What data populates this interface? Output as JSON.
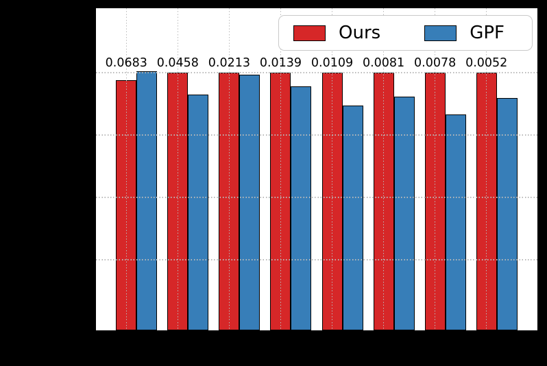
{
  "chart_data": {
    "type": "bar",
    "n_groups": 8,
    "series": [
      {
        "name": "Ours",
        "color": "#d62728",
        "edge_color": "#000000",
        "values": [
          0.776,
          0.8,
          0.8,
          0.8,
          0.8,
          0.8,
          0.8,
          0.8
        ]
      },
      {
        "name": "GPF",
        "color": "#377eb8",
        "edge_color": "#000000",
        "values": [
          0.804,
          0.731,
          0.793,
          0.757,
          0.695,
          0.724,
          0.667,
          0.718
        ]
      }
    ],
    "bar_labels": [
      "0.0683",
      "0.0458",
      "0.0213",
      "0.0139",
      "0.0109",
      "0.0081",
      "0.0078",
      "0.0052"
    ],
    "bar_width_data_units": 0.4,
    "axis": {
      "xlim": [
        -0.59,
        7.99
      ],
      "ylim": [
        -0.026,
        1.007
      ],
      "xticks": [
        0,
        1,
        2,
        3,
        4,
        5,
        6,
        7
      ],
      "yticks": [
        0.2,
        0.4,
        0.6,
        0.8
      ],
      "grid": true,
      "grid_style": "dotted",
      "grid_color": "#b9b9b9",
      "x_tick_labels_visible": false,
      "y_tick_labels_visible": false
    },
    "legend": {
      "position": "upper right",
      "background": "#ffffff",
      "border_color": "#c9c9c9"
    },
    "plot_background": "#ffffff",
    "figure_background": "#000000",
    "title": "",
    "xlabel": "",
    "ylabel": ""
  }
}
